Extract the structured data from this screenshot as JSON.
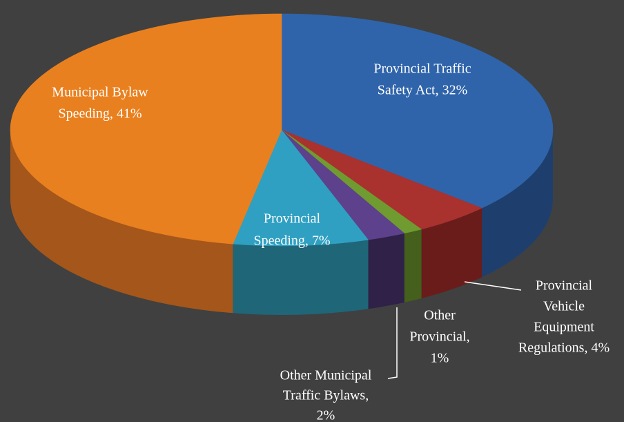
{
  "chart_data": {
    "type": "pie3d",
    "labels": [
      [
        "Provincial Traffic",
        "Safety Act, 32%"
      ],
      [
        "Provincial",
        "Vehicle",
        "Equipment",
        "Regulations, 4%"
      ],
      [
        "Other",
        "Provincial,",
        "1%"
      ],
      [
        "Other Municipal",
        "Traffic Bylaws,",
        "2%"
      ],
      [
        "Provincial",
        "Speeding, 7%"
      ],
      [
        "Municipal Bylaw",
        "Speeding, 41%"
      ]
    ],
    "values": [
      32,
      4,
      1,
      2,
      7,
      41
    ],
    "colors": [
      "#2f64aa",
      "#a9312e",
      "#6f9b30",
      "#5d418c",
      "#2fa0c2",
      "#e9801f"
    ],
    "side_colors": [
      "#1e3f6e",
      "#6a1c1b",
      "#455f1c",
      "#2f2147",
      "#1f6678",
      "#a5561a"
    ]
  }
}
